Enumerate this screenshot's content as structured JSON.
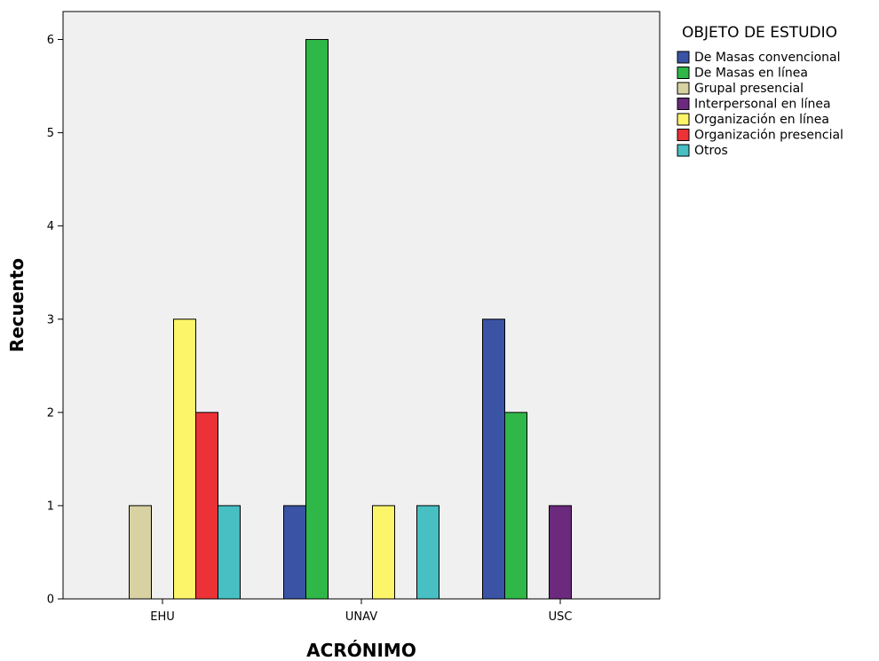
{
  "chart_data": {
    "type": "bar",
    "title": "",
    "xlabel": "ACRÓNIMO",
    "ylabel": "Recuento",
    "ylim": [
      0,
      6.3
    ],
    "yticks": [
      0,
      1,
      2,
      3,
      4,
      5,
      6
    ],
    "grid": false,
    "legend_title": "OBJETO DE ESTUDIO",
    "legend_position": "right",
    "categories": [
      "EHU",
      "UNAV",
      "USC"
    ],
    "series": [
      {
        "name": "De Masas convencional",
        "color": "#3a53a4",
        "values": [
          0,
          1,
          3
        ]
      },
      {
        "name": "De Masas en línea",
        "color": "#2fb848",
        "values": [
          0,
          6,
          2
        ]
      },
      {
        "name": "Grupal presencial",
        "color": "#d8d1a1",
        "values": [
          1,
          0,
          0
        ]
      },
      {
        "name": "Interpersonal en línea",
        "color": "#6b2a7d",
        "values": [
          0,
          0,
          1
        ]
      },
      {
        "name": "Organización en línea",
        "color": "#fcf56a",
        "values": [
          3,
          1,
          0
        ]
      },
      {
        "name": "Organización presencial",
        "color": "#ec3237",
        "values": [
          2,
          0,
          0
        ]
      },
      {
        "name": "Otros",
        "color": "#47bfc3",
        "values": [
          1,
          1,
          0
        ]
      }
    ]
  }
}
